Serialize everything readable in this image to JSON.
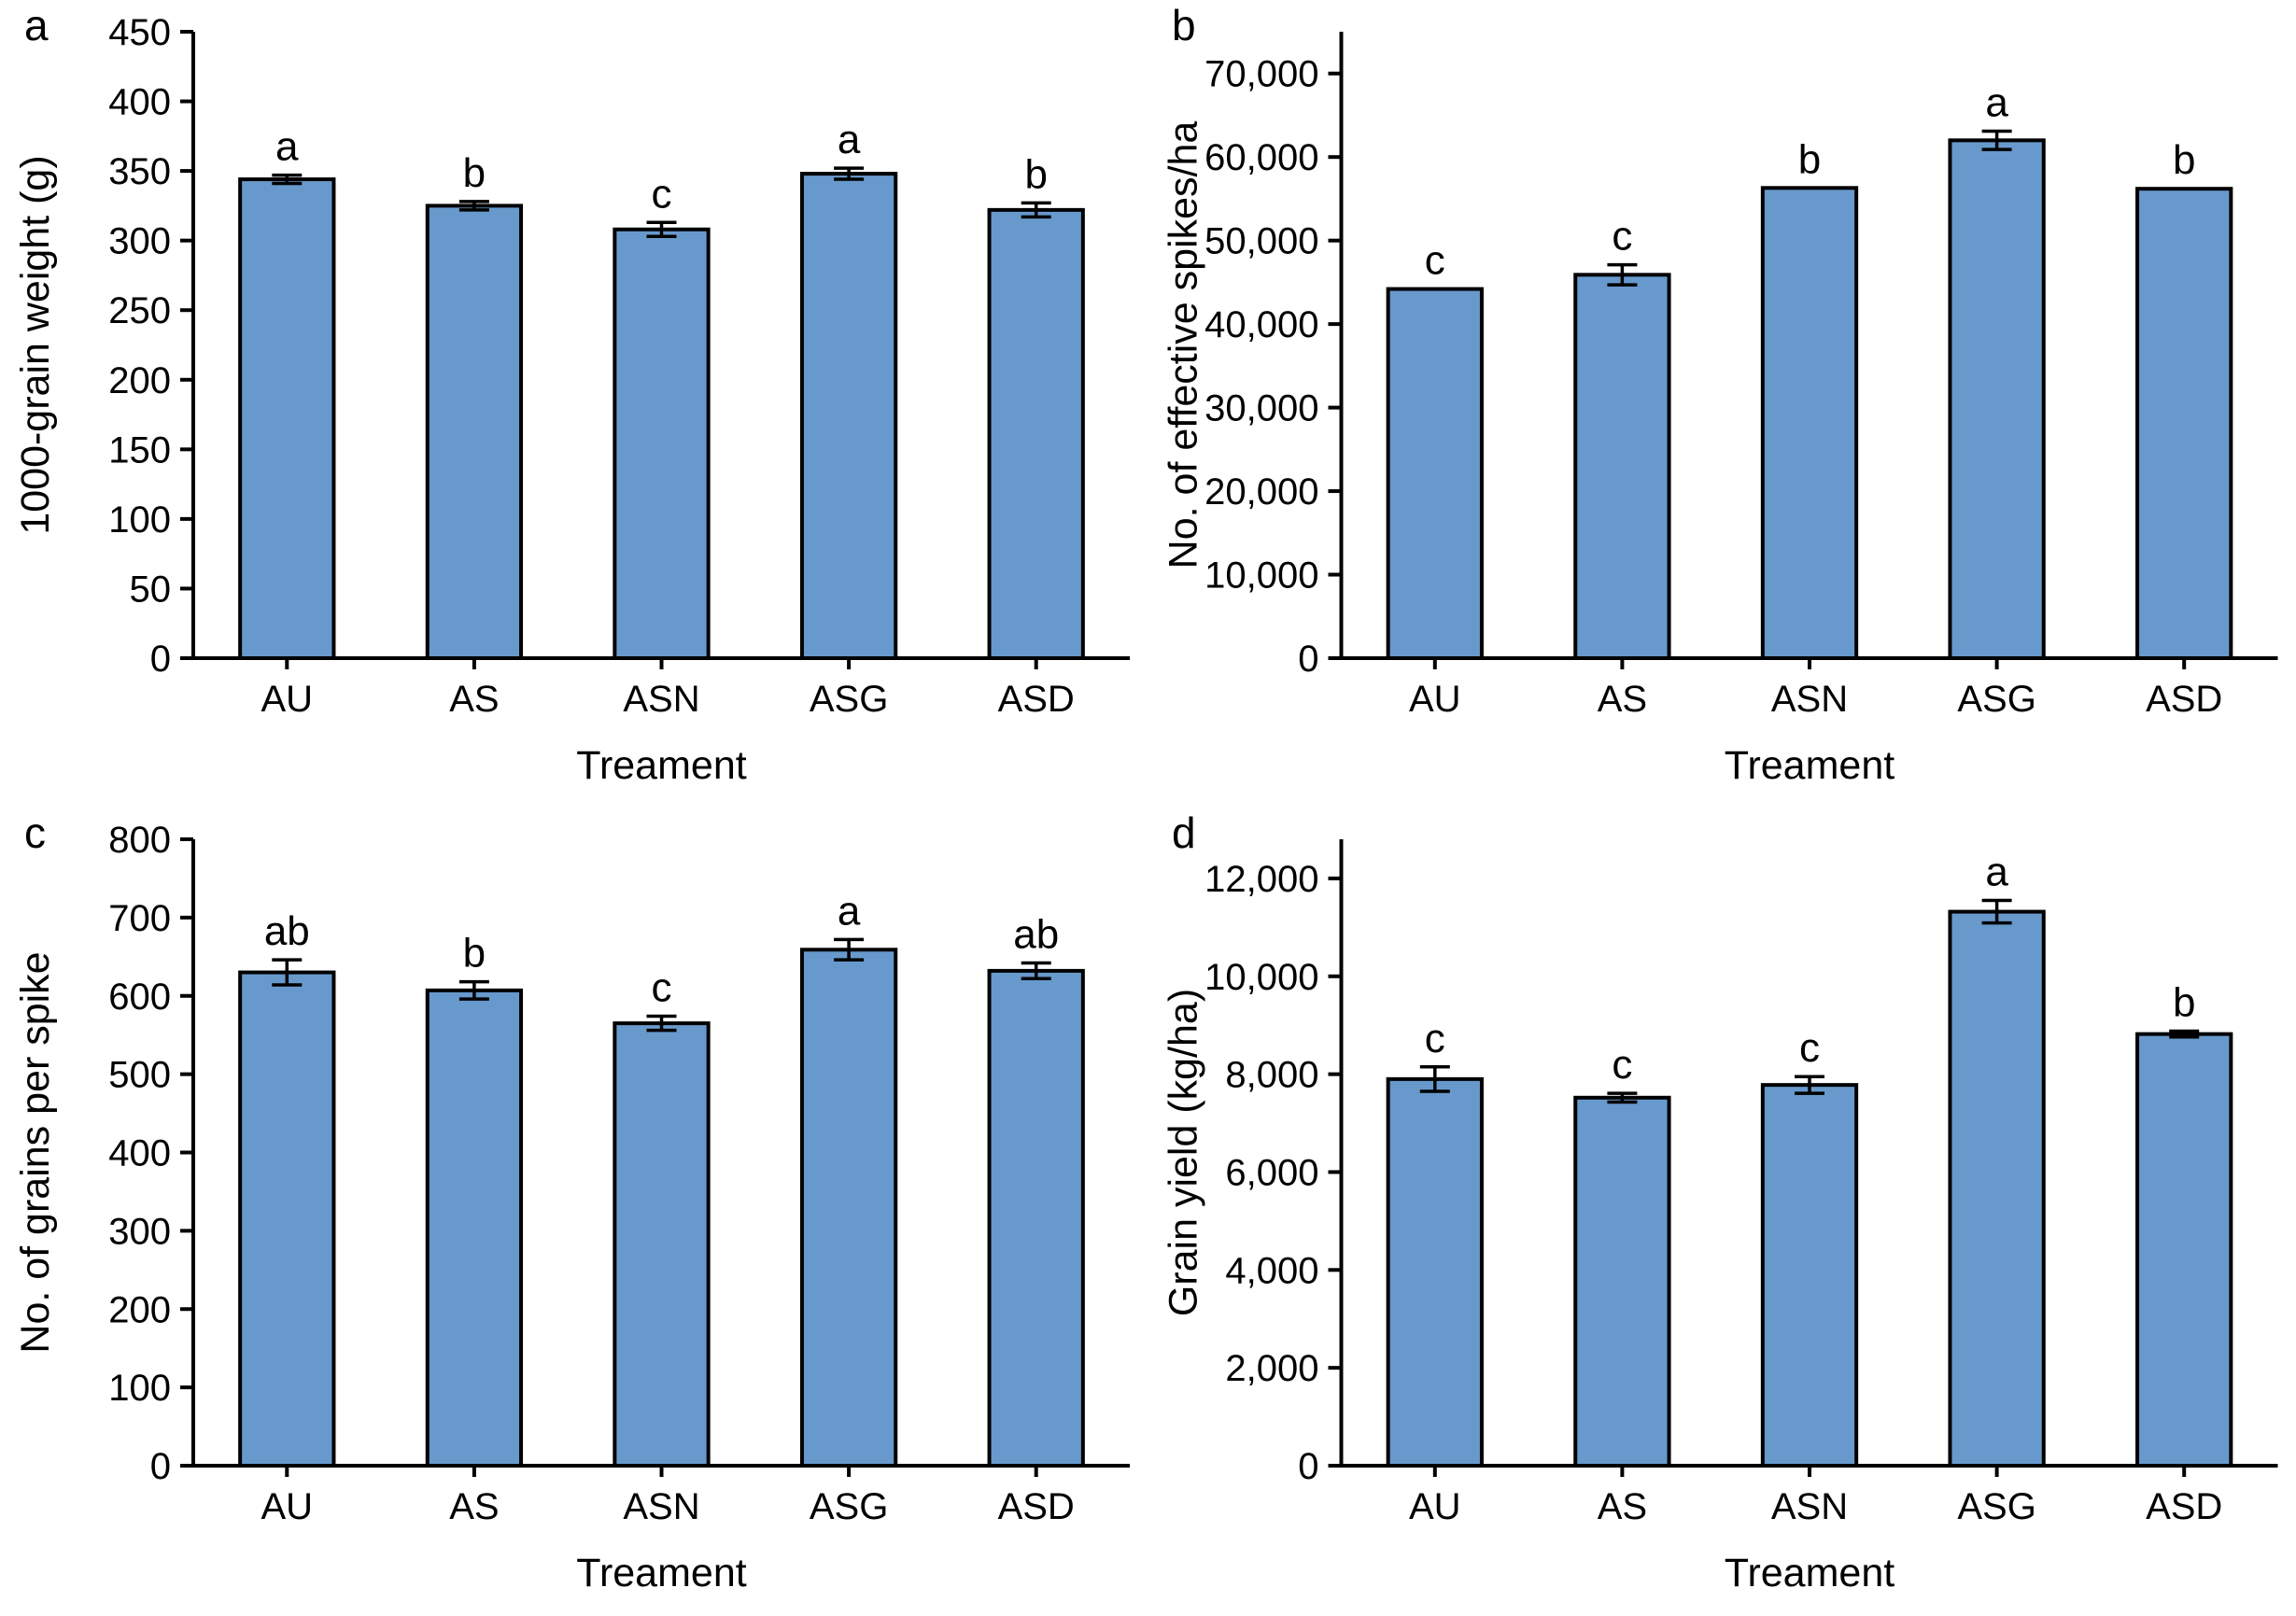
{
  "figure": {
    "background": "#ffffff",
    "description": "Four-panel bar chart figure comparing five treatments"
  },
  "colors": {
    "bar_fill": "#6899CD",
    "bar_stroke": "#000000",
    "axis": "#000000",
    "text": "#000000"
  },
  "chart_data": [
    {
      "panel_letter": "a",
      "type": "bar",
      "ylabel": "1000-grain weight (g)",
      "xlabel": "Treament",
      "categories": [
        "AU",
        "AS",
        "ASN",
        "ASG",
        "ASD"
      ],
      "values": [
        344,
        325,
        308,
        348,
        322
      ],
      "errors": [
        3,
        3,
        5,
        4,
        5
      ],
      "sig_letters": [
        "a",
        "b",
        "c",
        "a",
        "b"
      ],
      "ylim": [
        0,
        450
      ],
      "ytick_step": 50,
      "ytick_max": 450,
      "tick_format": "plain",
      "grid": false,
      "legend": "none"
    },
    {
      "panel_letter": "b",
      "type": "bar",
      "ylabel": "No. of effective spikes/ha",
      "xlabel": "Treament",
      "categories": [
        "AU",
        "AS",
        "ASN",
        "ASG",
        "ASD"
      ],
      "values": [
        44200,
        45900,
        56300,
        62000,
        56200
      ],
      "errors": [
        0,
        1200,
        0,
        1100,
        0
      ],
      "sig_letters": [
        "c",
        "c",
        "b",
        "a",
        "b"
      ],
      "ylim": [
        0,
        75000
      ],
      "ytick_step": 10000,
      "ytick_max": 70000,
      "tick_format": "comma",
      "grid": false,
      "legend": "none"
    },
    {
      "panel_letter": "c",
      "type": "bar",
      "ylabel": "No. of grains per spike",
      "xlabel": "Treament",
      "categories": [
        "AU",
        "AS",
        "ASN",
        "ASG",
        "ASD"
      ],
      "values": [
        630,
        607,
        565,
        659,
        632
      ],
      "errors": [
        16,
        11,
        9,
        13,
        10
      ],
      "sig_letters": [
        "ab",
        "b",
        "c",
        "a",
        "ab"
      ],
      "ylim": [
        0,
        800
      ],
      "ytick_step": 100,
      "ytick_max": 800,
      "tick_format": "plain",
      "grid": false,
      "legend": "none"
    },
    {
      "panel_letter": "d",
      "type": "bar",
      "ylabel": "Grain yield (kg/ha)",
      "xlabel": "Treament",
      "categories": [
        "AU",
        "AS",
        "ASN",
        "ASG",
        "ASD"
      ],
      "values": [
        7900,
        7520,
        7780,
        11320,
        8820
      ],
      "errors": [
        250,
        90,
        170,
        230,
        60
      ],
      "sig_letters": [
        "c",
        "c",
        "c",
        "a",
        "b"
      ],
      "ylim": [
        0,
        12800
      ],
      "ytick_step": 2000,
      "ytick_max": 12000,
      "tick_format": "comma",
      "grid": false,
      "legend": "none"
    }
  ]
}
